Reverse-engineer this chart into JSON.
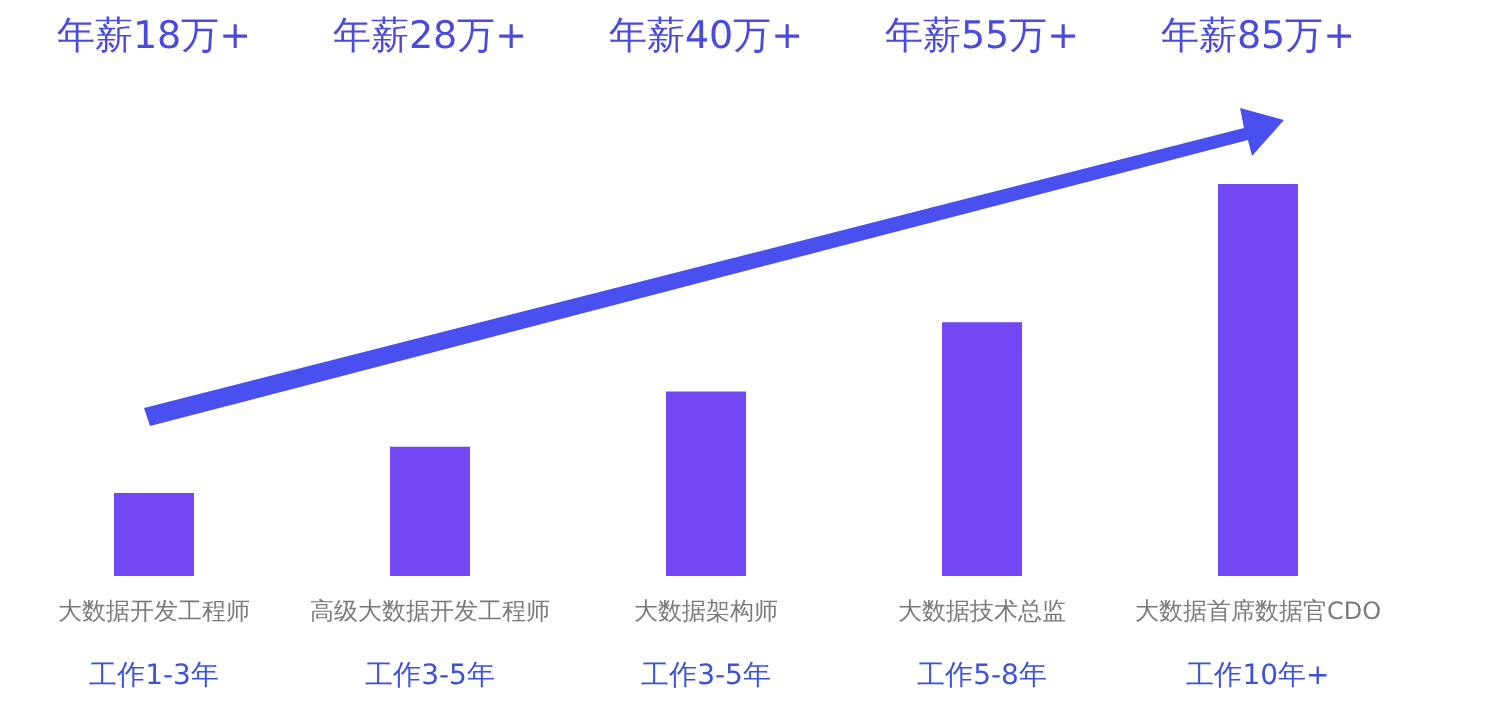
{
  "chart_data": {
    "type": "bar",
    "categories": [
      "大数据开发工程师",
      "高级大数据开发工程师",
      "大数据架构师",
      "大数据技术总监",
      "大数据首席数据官CDO"
    ],
    "values": [
      18,
      28,
      40,
      55,
      85
    ],
    "value_labels": [
      "年薪18万+",
      "年薪28万+",
      "年薪40万+",
      "年薪55万+",
      "年薪85万+"
    ],
    "color": "#7447f5",
    "annotations": [
      "工作1-3年",
      "工作3-5年",
      "工作3-5年",
      "工作5-8年",
      "工作10年+"
    ]
  }
}
